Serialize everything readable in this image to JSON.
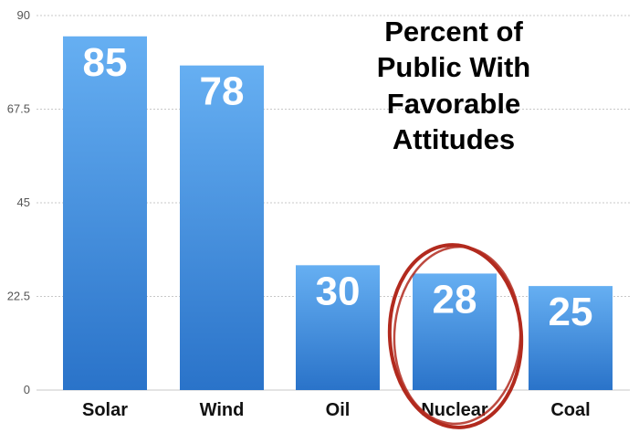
{
  "chart_data": {
    "type": "bar",
    "title_lines": [
      "Percent of",
      "Public With",
      "Favorable",
      "Attitudes"
    ],
    "categories": [
      "Solar",
      "Wind",
      "Oil",
      "Nuclear",
      "Coal"
    ],
    "values": [
      85,
      78,
      30,
      28,
      25
    ],
    "data_labels": [
      "85",
      "78",
      "30",
      "28",
      "25"
    ],
    "ylim": [
      0,
      90
    ],
    "yticks": [
      0,
      22.5,
      45,
      67.5,
      90
    ],
    "ytick_labels": [
      "0",
      "22.5",
      "45",
      "67.5",
      "90"
    ],
    "grid": true,
    "highlighted_category": "Nuclear",
    "colors": {
      "bar_top": "#66aff2",
      "bar_bottom": "#2a73c9",
      "highlight_ring": "#b22a1e",
      "grid": "#c8c8c8"
    }
  }
}
